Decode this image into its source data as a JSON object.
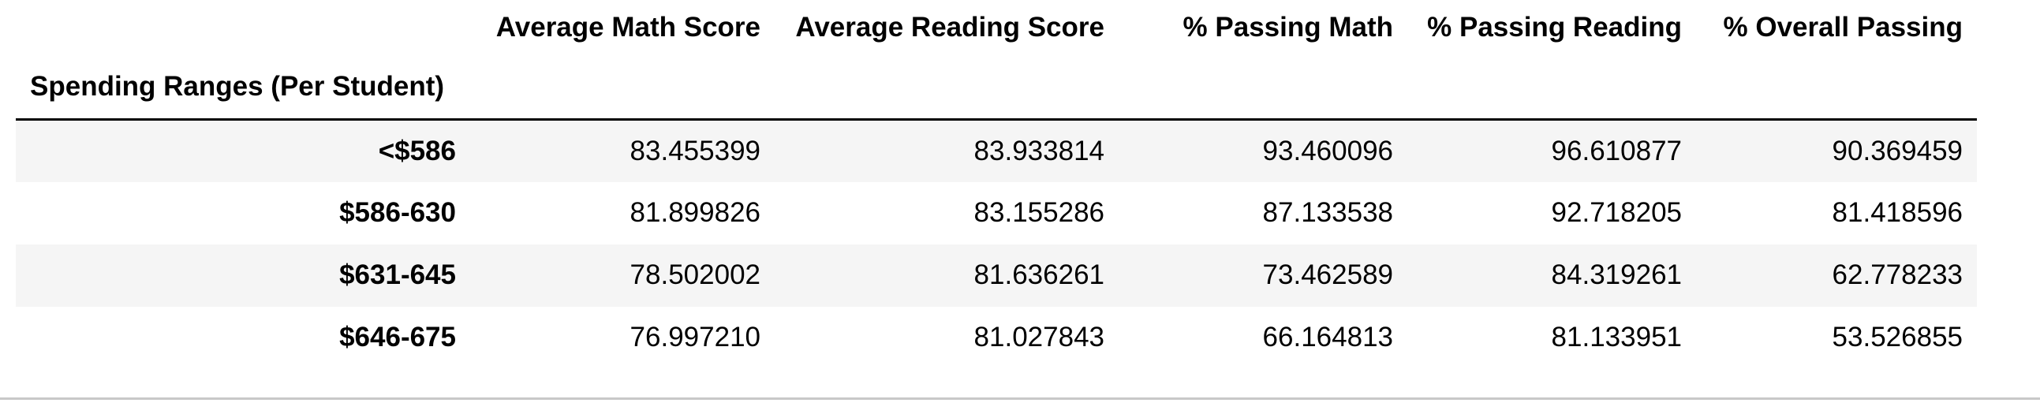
{
  "table": {
    "columns": [
      "Average Math Score",
      "Average Reading Score",
      "% Passing Math",
      "% Passing Reading",
      "% Overall Passing"
    ],
    "index_name": "Spending Ranges (Per Student)",
    "rows": [
      {
        "index": "<$586",
        "values": [
          "83.455399",
          "83.933814",
          "93.460096",
          "96.610877",
          "90.369459"
        ]
      },
      {
        "index": "$586-630",
        "values": [
          "81.899826",
          "83.155286",
          "87.133538",
          "92.718205",
          "81.418596"
        ]
      },
      {
        "index": "$631-645",
        "values": [
          "78.502002",
          "81.636261",
          "73.462589",
          "84.319261",
          "62.778233"
        ]
      },
      {
        "index": "$646-675",
        "values": [
          "76.997210",
          "81.027843",
          "66.164813",
          "81.133951",
          "53.526855"
        ]
      }
    ]
  },
  "colors": {
    "stripe": "#f5f5f5",
    "header_rule": "#000000",
    "bottom_rule": "#c8c8c8"
  }
}
